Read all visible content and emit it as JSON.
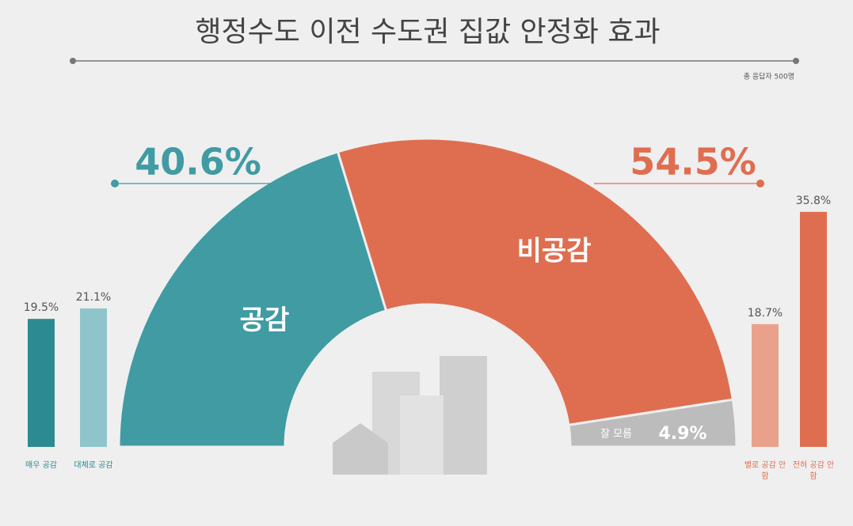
{
  "title": "행정수도 이전 수도권 집값 안정화 효과",
  "note": "총 응답자 500명",
  "chart_data": [
    {
      "type": "semidonut",
      "categories": [
        "공감",
        "비공감",
        "잘 모름"
      ],
      "values": [
        40.6,
        54.5,
        4.9
      ],
      "value_labels": [
        "40.6%",
        "54.5%",
        "4.9%"
      ],
      "colors": [
        "#409ba3",
        "#df6e51",
        "#bcbcbc"
      ]
    },
    {
      "type": "bar",
      "categories": [
        "매우 공감",
        "대체로 공감",
        "별로 공감 안함",
        "전혀 공감 안함"
      ],
      "values": [
        19.5,
        21.1,
        18.7,
        35.8
      ],
      "value_labels": [
        "19.5%",
        "21.1%",
        "18.7%",
        "35.8%"
      ],
      "colors": [
        "#2c8a91",
        "#8fc5ca",
        "#e9a18c",
        "#df6e51"
      ]
    }
  ]
}
